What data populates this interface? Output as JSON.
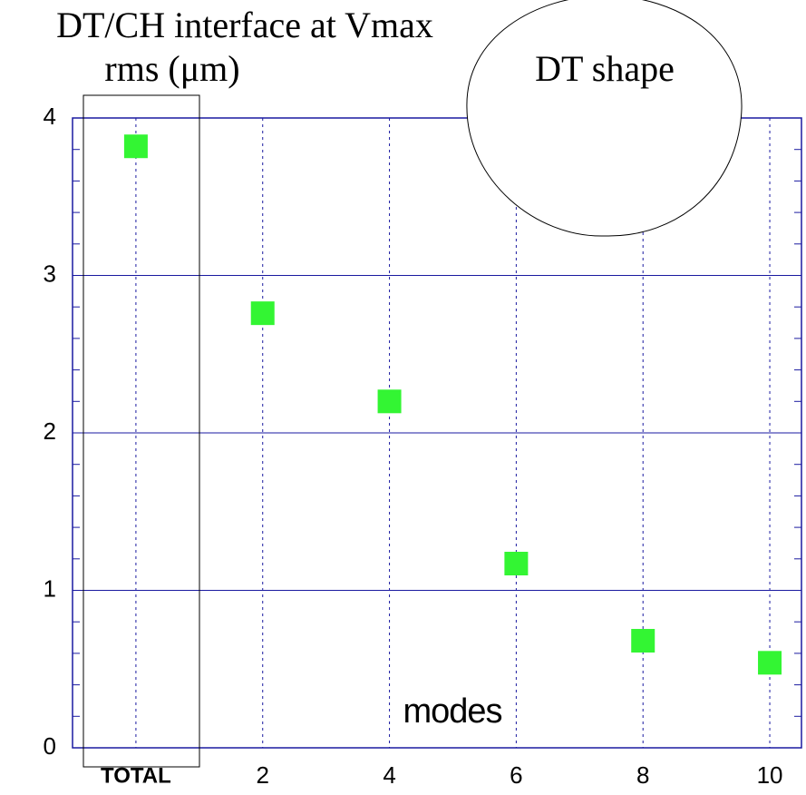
{
  "chart_data": {
    "type": "scatter",
    "title": "DT/CH interface at Vmax",
    "y_label": "rms (μm)",
    "x_label": "modes",
    "annotation": "DT shape",
    "x": [
      0,
      2,
      4,
      6,
      8,
      10
    ],
    "values": [
      3.82,
      2.76,
      2.2,
      1.17,
      0.68,
      0.54
    ],
    "color": "#33f533",
    "xlim": [
      -1,
      10.5
    ],
    "xticks": [
      {
        "value": 0,
        "label": "TOTAL"
      },
      2,
      4,
      6,
      8,
      10
    ],
    "ylim": [
      0,
      4
    ],
    "yticks": [
      0,
      1,
      2,
      3,
      4
    ],
    "yminorticks": [
      0.2,
      0.4,
      0.6,
      0.8,
      1.2,
      1.4,
      1.6,
      1.8,
      2.2,
      2.4,
      2.6,
      2.8,
      3.2,
      3.4,
      3.6,
      3.8
    ],
    "grid": true
  }
}
